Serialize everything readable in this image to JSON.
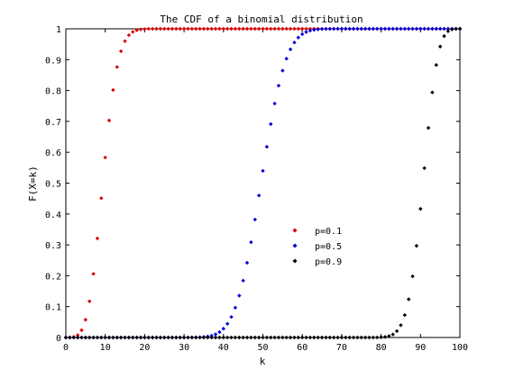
{
  "chart_data": {
    "type": "scatter",
    "title": "The CDF of a binomial distribution",
    "xlabel": "k",
    "ylabel": "F(X=k)",
    "xlim": [
      0,
      100
    ],
    "ylim": [
      0,
      1
    ],
    "xticks": [
      0,
      10,
      20,
      30,
      40,
      50,
      60,
      70,
      80,
      90,
      100
    ],
    "yticks": [
      0,
      0.1,
      0.2,
      0.3,
      0.4,
      0.5,
      0.6,
      0.7,
      0.8,
      0.9,
      1
    ],
    "grid": false,
    "legend_position": "center-right",
    "n": 100,
    "x": [
      0,
      1,
      2,
      3,
      4,
      5,
      6,
      7,
      8,
      9,
      10,
      11,
      12,
      13,
      14,
      15,
      16,
      17,
      18,
      19,
      20,
      21,
      22,
      23,
      24,
      25,
      26,
      27,
      28,
      29,
      30,
      31,
      32,
      33,
      34,
      35,
      36,
      37,
      38,
      39,
      40,
      41,
      42,
      43,
      44,
      45,
      46,
      47,
      48,
      49,
      50,
      51,
      52,
      53,
      54,
      55,
      56,
      57,
      58,
      59,
      60,
      61,
      62,
      63,
      64,
      65,
      66,
      67,
      68,
      69,
      70,
      71,
      72,
      73,
      74,
      75,
      76,
      77,
      78,
      79,
      80,
      81,
      82,
      83,
      84,
      85,
      86,
      87,
      88,
      89,
      90,
      91,
      92,
      93,
      94,
      95,
      96,
      97,
      98,
      99,
      100
    ],
    "series": [
      {
        "name": "p=0.1",
        "color": "#dd0000",
        "values": [
          0,
          0.0003,
          0.0019,
          0.0078,
          0.0237,
          0.0576,
          0.1172,
          0.2061,
          0.3209,
          0.4513,
          0.5832,
          0.703,
          0.8018,
          0.8761,
          0.9274,
          0.9601,
          0.9794,
          0.99,
          0.9954,
          0.998,
          0.9992,
          0.9997,
          0.9999,
          1,
          1,
          1,
          1,
          1,
          1,
          1,
          1,
          1,
          1,
          1,
          1,
          1,
          1,
          1,
          1,
          1,
          1,
          1,
          1,
          1,
          1,
          1,
          1,
          1,
          1,
          1,
          1,
          1,
          1,
          1,
          1,
          1,
          1,
          1,
          1,
          1,
          1,
          1,
          1,
          1,
          1,
          1,
          1,
          1,
          1,
          1,
          1,
          1,
          1,
          1,
          1,
          1,
          1,
          1,
          1,
          1,
          1,
          1,
          1,
          1,
          1,
          1,
          1,
          1,
          1,
          1,
          1,
          1,
          1,
          1,
          1,
          1,
          1,
          1,
          1,
          1,
          1
        ]
      },
      {
        "name": "p=0.5",
        "color": "#0000dd",
        "values": [
          0,
          0,
          0,
          0,
          0,
          0,
          0,
          0,
          0,
          0,
          0,
          0,
          0,
          0,
          0,
          0,
          0,
          0,
          0,
          0,
          0,
          0,
          0,
          0,
          0,
          0,
          0,
          0,
          0,
          0.0001,
          0.0001,
          0.0002,
          0.0003,
          0.0004,
          0.0009,
          0.0018,
          0.0033,
          0.006,
          0.0105,
          0.0176,
          0.0284,
          0.0443,
          0.0666,
          0.0967,
          0.1356,
          0.1841,
          0.2421,
          0.3087,
          0.3822,
          0.4602,
          0.5398,
          0.6178,
          0.6913,
          0.7579,
          0.8159,
          0.8644,
          0.9033,
          0.9334,
          0.9557,
          0.9716,
          0.9824,
          0.9895,
          0.994,
          0.9967,
          0.9982,
          0.9991,
          0.9996,
          0.9998,
          0.9999,
          1,
          1,
          1,
          1,
          1,
          1,
          1,
          1,
          1,
          1,
          1,
          1,
          1,
          1,
          1,
          1,
          1,
          1,
          1,
          1,
          1,
          1,
          1,
          1,
          1,
          1,
          1,
          1,
          1,
          1,
          1,
          1
        ]
      },
      {
        "name": "p=0.9",
        "color": "#000000",
        "values": [
          0,
          0,
          0,
          0,
          0,
          0,
          0,
          0,
          0,
          0,
          0,
          0,
          0,
          0,
          0,
          0,
          0,
          0,
          0,
          0,
          0,
          0,
          0,
          0,
          0,
          0,
          0,
          0,
          0,
          0,
          0,
          0,
          0,
          0,
          0,
          0,
          0,
          0,
          0,
          0,
          0,
          0,
          0,
          0,
          0,
          0,
          0,
          0,
          0,
          0,
          0,
          0,
          0,
          0,
          0,
          0,
          0,
          0,
          0,
          0,
          0,
          0,
          0,
          0,
          0,
          0,
          0,
          0,
          0,
          0,
          0,
          0,
          0,
          0,
          0,
          0,
          0,
          0,
          0.0001,
          0.0001,
          0.0008,
          0.002,
          0.0046,
          0.01,
          0.0206,
          0.0399,
          0.0726,
          0.1239,
          0.1982,
          0.297,
          0.4168,
          0.5487,
          0.6791,
          0.7939,
          0.8828,
          0.9424,
          0.9763,
          0.9922,
          0.9981,
          0.9997,
          1
        ]
      }
    ]
  }
}
